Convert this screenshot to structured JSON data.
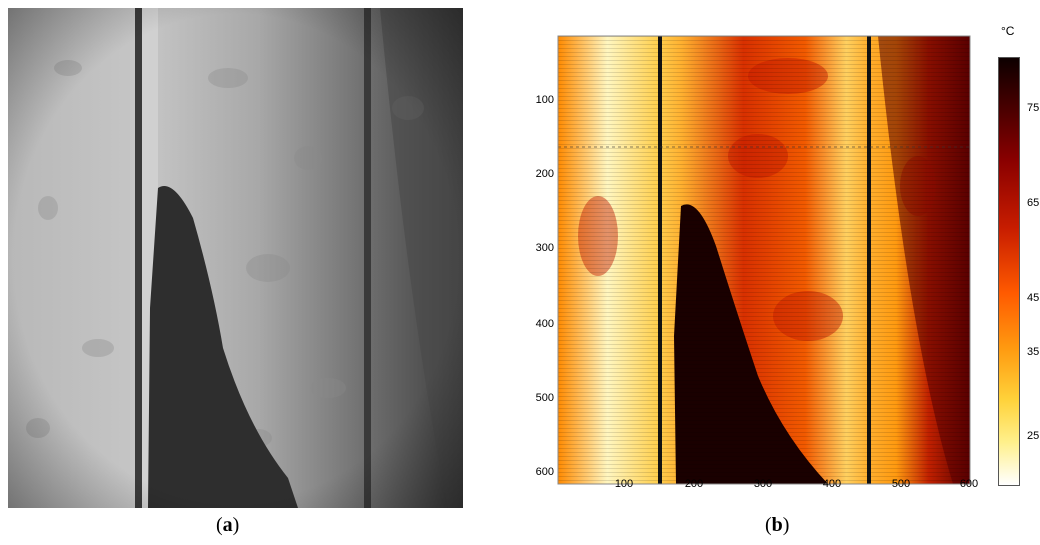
{
  "panel_a": {
    "label_open": "(",
    "label_letter": "a",
    "label_close": ")"
  },
  "panel_b": {
    "label_open": "(",
    "label_letter": "b",
    "label_close": ")",
    "y_ticks": [
      "100",
      "200",
      "300",
      "400",
      "500",
      "600"
    ],
    "x_ticks": [
      "100",
      "200",
      "300",
      "400",
      "500",
      "600"
    ],
    "colorbar": {
      "unit": "°C",
      "ticks": [
        "75",
        "65",
        "45",
        "35",
        "25"
      ]
    }
  },
  "colors": {
    "hot_dark": "#1a0000",
    "mid_red": "#c81d00",
    "orange": "#ff8a00",
    "yellow": "#ffe46a",
    "white": "#ffffff"
  }
}
